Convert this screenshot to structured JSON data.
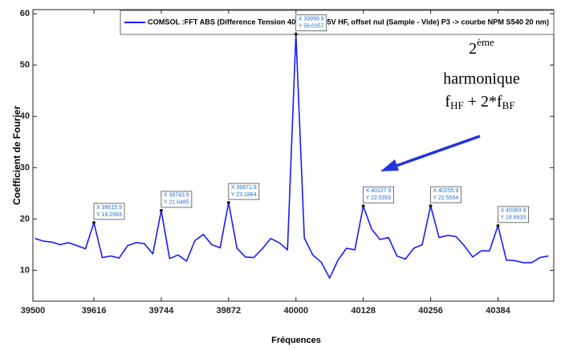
{
  "chart_data": {
    "type": "line",
    "legend": "COMSOL :FFT ABS (Difference Tension 40V BF et 35V HF, offset nul (Sample - Vide) P3 -> courbe NPM S540 20 nm)",
    "x_label": "Fréquences",
    "y_label": "Coefficient de Fourier",
    "x": [
      39503.9,
      39519.9,
      39535.9,
      39551.9,
      39567.9,
      39583.9,
      39599.9,
      39615.9,
      39631.9,
      39647.9,
      39663.9,
      39679.9,
      39695.9,
      39711.9,
      39727.9,
      39743.9,
      39759.9,
      39775.9,
      39791.9,
      39807.9,
      39823.9,
      39839.9,
      39855.9,
      39871.9,
      39887.9,
      39903.9,
      39919.9,
      39935.9,
      39951.9,
      39967.9,
      39983.9,
      39999.9,
      40015.9,
      40031.9,
      40047.9,
      40063.9,
      40079.9,
      40095.9,
      40111.9,
      40127.9,
      40143.9,
      40159.9,
      40175.9,
      40191.9,
      40207.9,
      40223.9,
      40239.9,
      40255.9,
      40271.9,
      40287.9,
      40303.9,
      40319.9,
      40335.9,
      40351.9,
      40367.9,
      40383.9,
      40399.9,
      40415.9,
      40431.9,
      40447.9,
      40463.9,
      40479.9
    ],
    "series": [
      {
        "name": "COMSOL :FFT ABS (Difference Tension 40V BF et 35V HF, offset nul (Sample - Vide) P3 -> courbe NPM S540 20 nm)",
        "color": "#1a1aff",
        "values": [
          16.2,
          15.7,
          15.5,
          15.0,
          15.4,
          14.8,
          14.2,
          19.2993,
          12.5,
          12.8,
          12.4,
          14.8,
          15.4,
          15.2,
          13.2,
          21.6485,
          12.3,
          13.0,
          11.8,
          15.8,
          17.0,
          15.0,
          14.4,
          23.1864,
          14.3,
          12.6,
          12.5,
          14.2,
          16.2,
          15.4,
          14.0,
          56.0357,
          16.3,
          13.0,
          11.6,
          8.5,
          12.0,
          14.3,
          14.0,
          22.5355,
          18.0,
          16.0,
          16.4,
          12.8,
          12.2,
          14.3,
          15.0,
          22.5554,
          16.4,
          16.8,
          16.6,
          14.8,
          12.6,
          13.8,
          13.8,
          18.6933,
          12.0,
          11.9,
          11.5,
          11.5,
          12.5,
          12.8
        ]
      }
    ],
    "xlim": [
      39500,
      40490
    ],
    "ylim": [
      4,
      60.8
    ],
    "xticks": [
      39500,
      39616,
      39744,
      39872,
      40000,
      40128,
      40256,
      40384
    ],
    "yticks": [
      10,
      20,
      30,
      40,
      50,
      60
    ],
    "grid": false,
    "datatips": [
      {
        "x": 39615.9,
        "y": 19.2993,
        "text": [
          "X 39615.9",
          "Y 19.2993"
        ]
      },
      {
        "x": 39743.9,
        "y": 21.6485,
        "text": [
          "X 39743.9",
          "Y 21.6485"
        ]
      },
      {
        "x": 39871.9,
        "y": 23.1864,
        "text": [
          "X 39871.9",
          "Y 23.1864"
        ]
      },
      {
        "x": 39999.9,
        "y": 56.0357,
        "text": [
          "X 39999.9",
          "Y 56.0357"
        ]
      },
      {
        "x": 40127.9,
        "y": 22.5355,
        "text": [
          "X 40127.9",
          "Y 22.5355"
        ]
      },
      {
        "x": 40255.9,
        "y": 22.5554,
        "text": [
          "X 40255.9",
          "Y 22.5554"
        ]
      },
      {
        "x": 40383.9,
        "y": 18.6933,
        "text": [
          "X 40383.9",
          "Y 18.6933"
        ]
      }
    ],
    "annotation": {
      "line1": [
        "2",
        "ème"
      ],
      "line2": "harmonique",
      "line3": [
        "f",
        "HF",
        " + 2*f",
        "BF"
      ]
    }
  }
}
